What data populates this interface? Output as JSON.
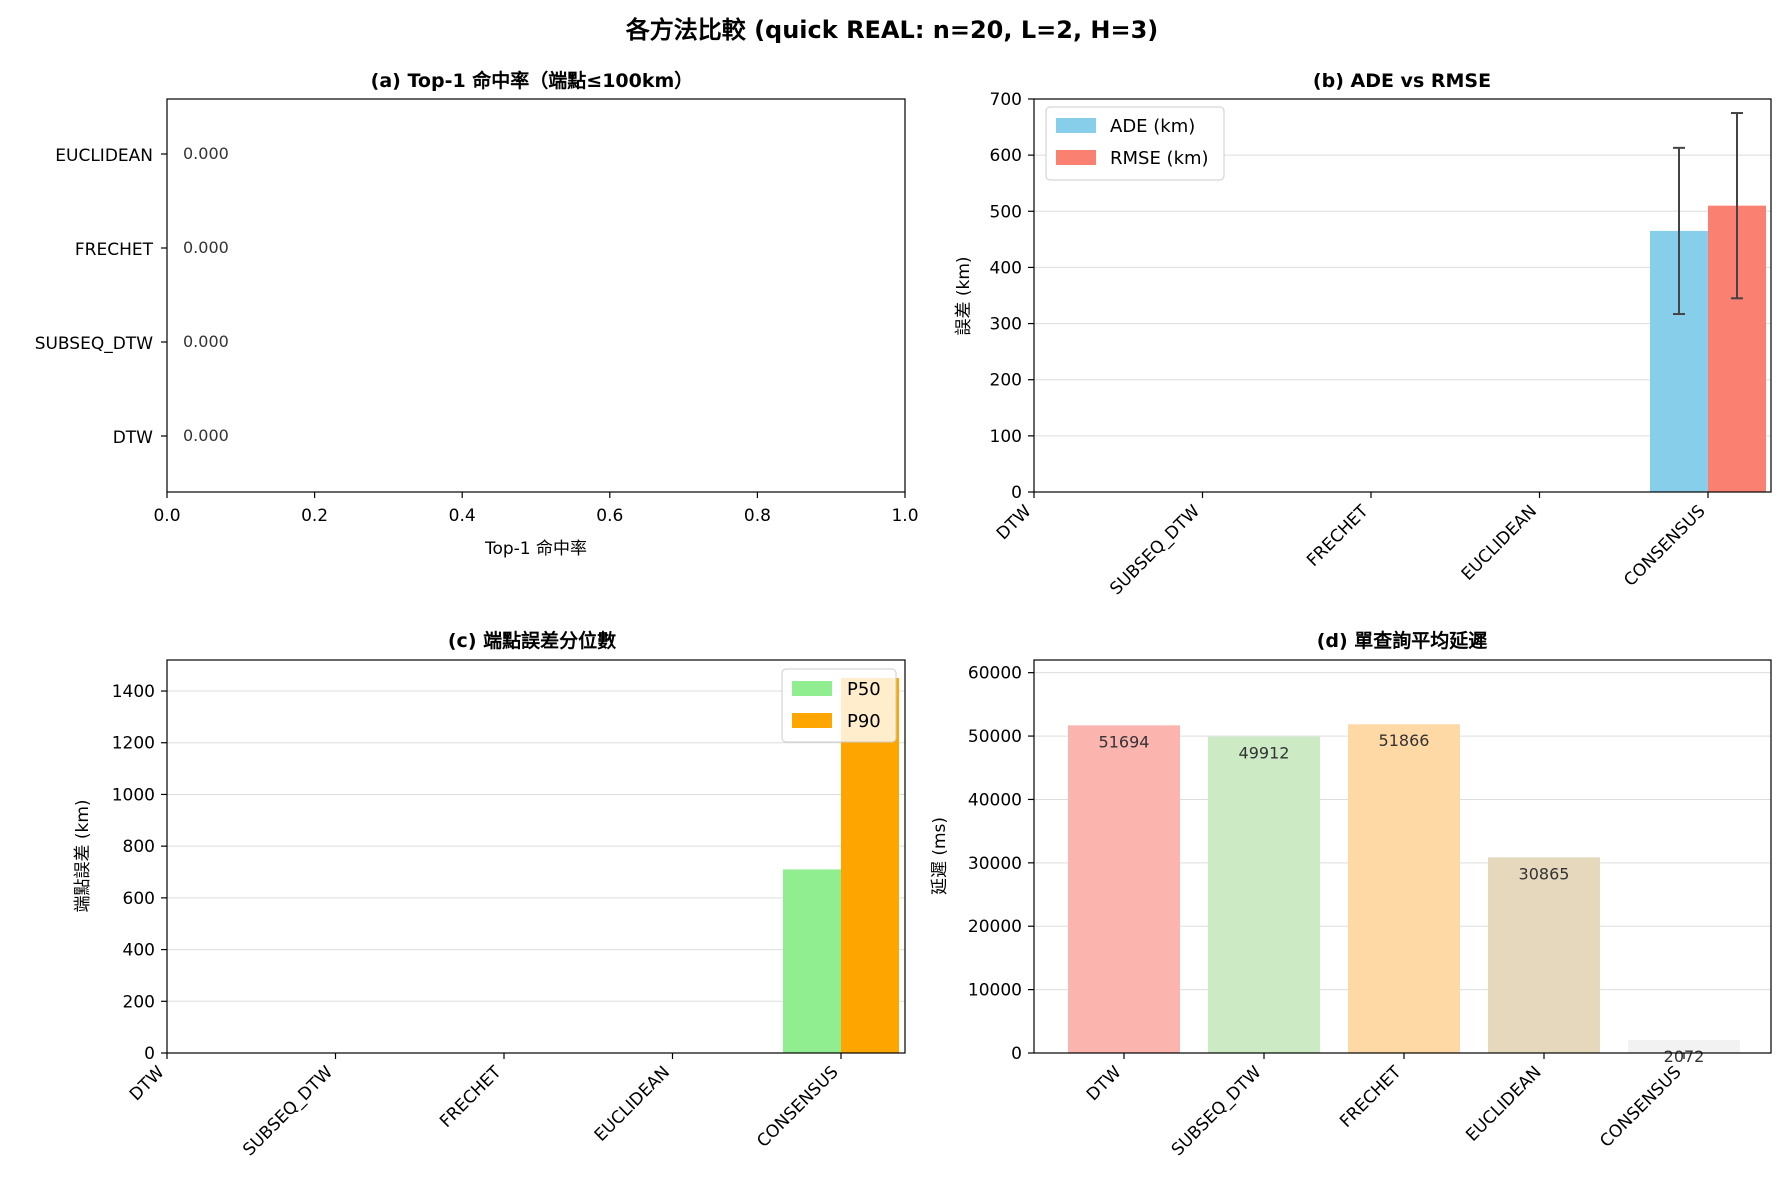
{
  "figure": {
    "title": "各方法比較 (quick REAL: n=20, L=2, H=3)"
  },
  "chart_data": [
    {
      "id": "a",
      "type": "bar",
      "orientation": "horizontal",
      "title": "(a) Top-1 命中率（端點≤100km）",
      "xlabel": "Top-1 命中率",
      "ylabel": "",
      "categories": [
        "DTW",
        "SUBSEQ_DTW",
        "FRECHET",
        "EUCLIDEAN"
      ],
      "values": [
        0.0,
        0.0,
        0.0,
        0.0
      ],
      "value_labels": [
        "0.000",
        "0.000",
        "0.000",
        "0.000"
      ],
      "xlim": [
        0,
        1.0
      ],
      "xticks": [
        "0.0",
        "0.2",
        "0.4",
        "0.6",
        "0.8",
        "1.0"
      ],
      "grid": false
    },
    {
      "id": "b",
      "type": "bar",
      "title": "(b) ADE vs RMSE",
      "xlabel": "",
      "ylabel": "誤差 (km)",
      "categories": [
        "DTW",
        "SUBSEQ_DTW",
        "FRECHET",
        "EUCLIDEAN",
        "CONSENSUS"
      ],
      "series": [
        {
          "name": "ADE (km)",
          "color": "#87ceeb",
          "values": [
            0,
            0,
            0,
            0,
            465
          ],
          "err": [
            0,
            0,
            0,
            0,
            148
          ]
        },
        {
          "name": "RMSE (km)",
          "color": "#fa8072",
          "values": [
            0,
            0,
            0,
            0,
            510
          ],
          "err": [
            0,
            0,
            0,
            0,
            165
          ]
        }
      ],
      "ylim": [
        0,
        700
      ],
      "yticks": [
        "0",
        "100",
        "200",
        "300",
        "400",
        "500",
        "600",
        "700"
      ],
      "legend": "top-left",
      "grid": true
    },
    {
      "id": "c",
      "type": "bar",
      "title": "(c) 端點誤差分位數",
      "xlabel": "",
      "ylabel": "端點誤差 (km)",
      "categories": [
        "DTW",
        "SUBSEQ_DTW",
        "FRECHET",
        "EUCLIDEAN",
        "CONSENSUS"
      ],
      "series": [
        {
          "name": "P50",
          "color": "#90ee90",
          "values": [
            0,
            0,
            0,
            0,
            710
          ]
        },
        {
          "name": "P90",
          "color": "#ffa500",
          "values": [
            0,
            0,
            0,
            0,
            1450
          ]
        }
      ],
      "ylim": [
        0,
        1520
      ],
      "yticks": [
        "0",
        "200",
        "400",
        "600",
        "800",
        "1000",
        "1200",
        "1400"
      ],
      "legend": "top-right",
      "grid": true
    },
    {
      "id": "d",
      "type": "bar",
      "title": "(d) 單查詢平均延遲",
      "xlabel": "",
      "ylabel": "延遲 (ms)",
      "categories": [
        "DTW",
        "SUBSEQ_DTW",
        "FRECHET",
        "EUCLIDEAN",
        "CONSENSUS"
      ],
      "values": [
        51694,
        49912,
        51866,
        30865,
        2072
      ],
      "value_labels": [
        "51694",
        "49912",
        "51866",
        "30865",
        "2072"
      ],
      "colors": [
        "#fbb4ae",
        "#ccebc5",
        "#fed9a6",
        "#e5d8bd",
        "#f2f2f2"
      ],
      "ylim": [
        0,
        62000
      ],
      "yticks": [
        "0",
        "10000",
        "20000",
        "30000",
        "40000",
        "50000",
        "60000"
      ],
      "grid": true
    }
  ]
}
